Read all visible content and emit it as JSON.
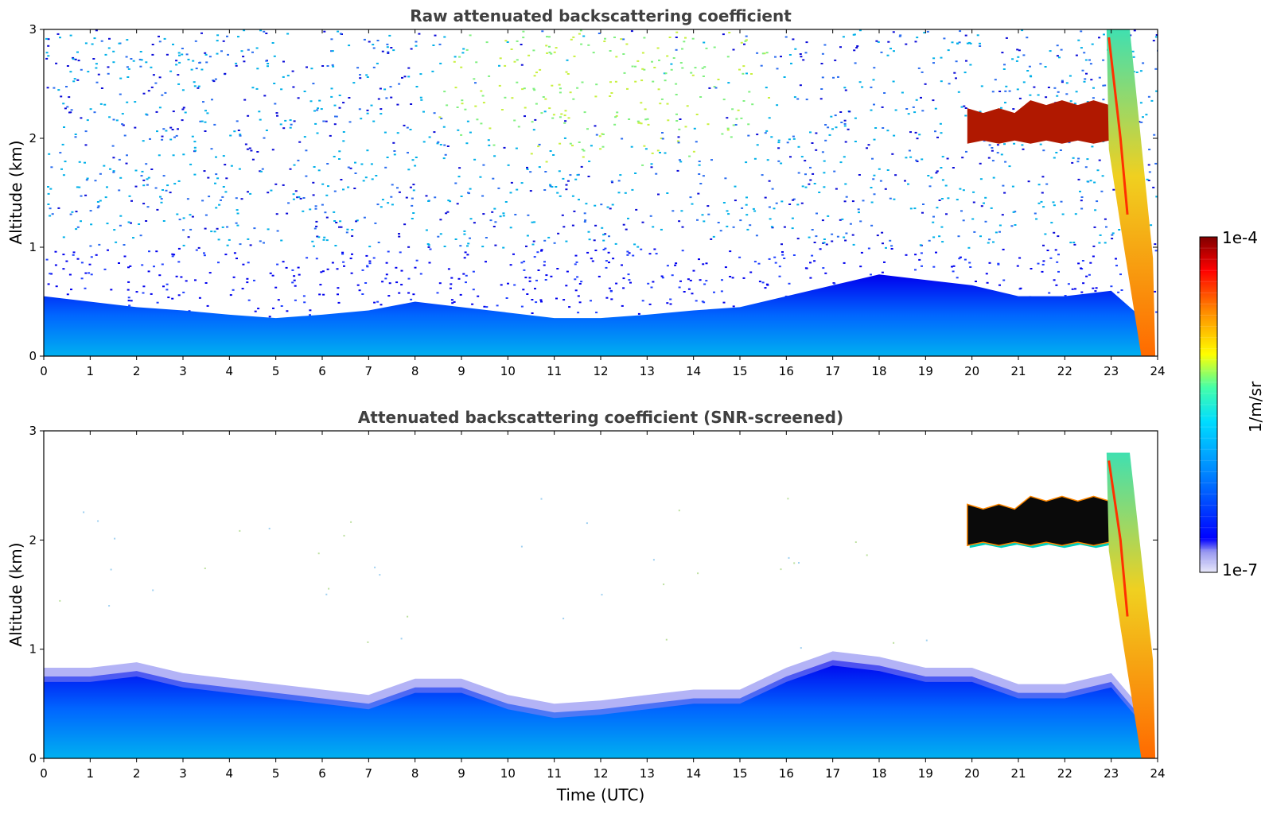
{
  "chart_data": [
    {
      "type": "heatmap",
      "title": "Raw attenuated backscattering coefficient",
      "xlabel": "",
      "ylabel": "Altitude (km)",
      "xlim": [
        0,
        24
      ],
      "ylim": [
        0,
        3
      ],
      "x_ticks": [
        "0",
        "1",
        "2",
        "3",
        "4",
        "5",
        "6",
        "7",
        "8",
        "9",
        "10",
        "11",
        "12",
        "13",
        "14",
        "15",
        "16",
        "17",
        "18",
        "19",
        "20",
        "21",
        "22",
        "23",
        "24"
      ],
      "y_ticks": [
        "0",
        "1",
        "2",
        "3"
      ],
      "boundary_layer_top_km": {
        "x": [
          0,
          1,
          2,
          3,
          4,
          5,
          6,
          7,
          8,
          9,
          10,
          11,
          12,
          13,
          14,
          15,
          16,
          17,
          18,
          19,
          20,
          21,
          22,
          23,
          23.8
        ],
        "y": [
          0.55,
          0.5,
          0.45,
          0.42,
          0.38,
          0.35,
          0.38,
          0.42,
          0.5,
          0.45,
          0.4,
          0.35,
          0.35,
          0.38,
          0.42,
          0.45,
          0.55,
          0.65,
          0.75,
          0.7,
          0.65,
          0.55,
          0.55,
          0.6,
          0.3
        ]
      },
      "cloud_layers": [
        {
          "x_start": 19.9,
          "x_end": 23.3,
          "alt_km": [
            1.95,
            2.35
          ],
          "level": "high"
        },
        {
          "x_start": 22.9,
          "x_end": 23.9,
          "alt_km": [
            0.0,
            3.0
          ],
          "level": "high"
        }
      ],
      "noise_maximum": {
        "x": 12,
        "alt_km": 2.5
      }
    },
    {
      "type": "heatmap",
      "title": "Attenuated backscattering coefficient (SNR-screened)",
      "xlabel": "Time (UTC)",
      "ylabel": "Altitude (km)",
      "xlim": [
        0,
        24
      ],
      "ylim": [
        0,
        3
      ],
      "x_ticks": [
        "0",
        "1",
        "2",
        "3",
        "4",
        "5",
        "6",
        "7",
        "8",
        "9",
        "10",
        "11",
        "12",
        "13",
        "14",
        "15",
        "16",
        "17",
        "18",
        "19",
        "20",
        "21",
        "22",
        "23",
        "24"
      ],
      "y_ticks": [
        "0",
        "1",
        "2",
        "3"
      ],
      "screened_layer_top_km": {
        "x": [
          0,
          1,
          2,
          3,
          4,
          5,
          6,
          7,
          8,
          9,
          10,
          11,
          12,
          13,
          14,
          15,
          16,
          17,
          18,
          19,
          20,
          21,
          22,
          23,
          23.8
        ],
        "y": [
          0.75,
          0.75,
          0.8,
          0.7,
          0.65,
          0.6,
          0.55,
          0.5,
          0.65,
          0.65,
          0.5,
          0.42,
          0.45,
          0.5,
          0.55,
          0.55,
          0.75,
          0.9,
          0.85,
          0.75,
          0.75,
          0.6,
          0.6,
          0.7,
          0.3
        ]
      },
      "cloud_layers": [
        {
          "x_start": 19.9,
          "x_end": 23.3,
          "alt_km": [
            1.95,
            2.4
          ],
          "level": "saturated"
        },
        {
          "x_start": 22.9,
          "x_end": 23.9,
          "alt_km": [
            0.0,
            2.8
          ],
          "level": "high"
        }
      ]
    }
  ],
  "colorbar": {
    "top_label": "1e-4",
    "bottom_label": "1e-7",
    "unit_label": "1/m/sr",
    "scale": "log",
    "range": [
      1e-07,
      0.0001
    ],
    "colormap": [
      "#e6e6f8",
      "#0000ff",
      "#00aaff",
      "#00ffff",
      "#ffff00",
      "#ff8800",
      "#ff0000",
      "#800000"
    ]
  }
}
